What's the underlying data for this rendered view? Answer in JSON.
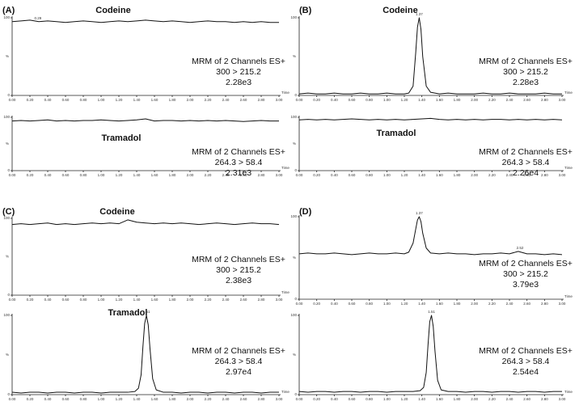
{
  "chart_data": [
    {
      "type": "line",
      "panel": "(A)",
      "title": "Codeine",
      "annotation": [
        "MRM of 2 Channels ES+",
        "300 > 215.2",
        "2.28e3"
      ],
      "xlabel": "Time",
      "ylabel": "%",
      "color": "#111111",
      "peak_labels": [
        0.29
      ],
      "x": [
        0,
        0.1,
        0.2,
        0.3,
        0.4,
        0.5,
        0.6,
        0.7,
        0.8,
        0.9,
        1,
        1.1,
        1.2,
        1.3,
        1.4,
        1.5,
        1.6,
        1.7,
        1.8,
        1.9,
        2,
        2.1,
        2.2,
        2.3,
        2.4,
        2.5,
        2.6,
        2.7,
        2.8,
        2.9,
        3
      ],
      "values": [
        95,
        96,
        97,
        95,
        96,
        95,
        94,
        95,
        96,
        95,
        94,
        95,
        96,
        95,
        96,
        97,
        96,
        95,
        96,
        95,
        94,
        95,
        96,
        95,
        95,
        94,
        95,
        94,
        95,
        94,
        94
      ],
      "xlim": [
        0,
        3
      ],
      "ylim": [
        0,
        100
      ],
      "yticks": [
        0,
        100
      ],
      "xticks": [
        {
          "value": 0,
          "label": "0.00"
        },
        {
          "value": 0.2,
          "label": "0.20"
        },
        {
          "value": 0.4,
          "label": "0.40"
        },
        {
          "value": 0.6,
          "label": "0.60"
        },
        {
          "value": 0.8,
          "label": "0.80"
        },
        {
          "value": 1,
          "label": "1.00"
        },
        {
          "value": 1.2,
          "label": "1.20"
        },
        {
          "value": 1.4,
          "label": "1.40"
        },
        {
          "value": 1.6,
          "label": "1.60"
        },
        {
          "value": 1.8,
          "label": "1.80"
        },
        {
          "value": 2,
          "label": "2.00"
        },
        {
          "value": 2.2,
          "label": "2.20"
        },
        {
          "value": 2.4,
          "label": "2.40"
        },
        {
          "value": 2.6,
          "label": "2.60"
        },
        {
          "value": 2.8,
          "label": "2.80"
        },
        {
          "value": 3,
          "label": "3.00"
        }
      ]
    },
    {
      "type": "line",
      "title": "Tramadol",
      "annotation": [
        "MRM of 2 Channels ES+",
        "264.3 > 58.4",
        "2.31e3"
      ],
      "xlabel": "Time",
      "ylabel": "%",
      "color": "#111111",
      "x": [
        0,
        0.1,
        0.2,
        0.3,
        0.4,
        0.5,
        0.6,
        0.7,
        0.8,
        0.9,
        1,
        1.1,
        1.2,
        1.3,
        1.4,
        1.5,
        1.6,
        1.7,
        1.8,
        1.9,
        2,
        2.1,
        2.2,
        2.3,
        2.4,
        2.5,
        2.6,
        2.7,
        2.8,
        2.9,
        3
      ],
      "values": [
        93,
        94,
        93,
        94,
        95,
        93,
        94,
        93,
        94,
        94,
        95,
        94,
        93,
        94,
        95,
        97,
        93,
        94,
        94,
        93,
        94,
        93,
        94,
        93,
        94,
        93,
        92,
        93,
        94,
        93,
        93
      ],
      "xlim": [
        0,
        3
      ],
      "ylim": [
        0,
        100
      ],
      "yticks": [
        0,
        100
      ],
      "xticks": [
        {
          "value": 0,
          "label": "0.00"
        },
        {
          "value": 0.2,
          "label": "0.20"
        },
        {
          "value": 0.4,
          "label": "0.40"
        },
        {
          "value": 0.6,
          "label": "0.60"
        },
        {
          "value": 0.8,
          "label": "0.80"
        },
        {
          "value": 1,
          "label": "1.00"
        },
        {
          "value": 1.2,
          "label": "1.20"
        },
        {
          "value": 1.4,
          "label": "1.40"
        },
        {
          "value": 1.6,
          "label": "1.60"
        },
        {
          "value": 1.8,
          "label": "1.80"
        },
        {
          "value": 2,
          "label": "2.00"
        },
        {
          "value": 2.2,
          "label": "2.20"
        },
        {
          "value": 2.4,
          "label": "2.40"
        },
        {
          "value": 2.6,
          "label": "2.60"
        },
        {
          "value": 2.8,
          "label": "2.80"
        },
        {
          "value": 3,
          "label": "3.00"
        }
      ]
    },
    {
      "type": "line",
      "panel": "(B)",
      "title": "Codeine",
      "annotation": [
        "MRM of 2 Channels ES+",
        "300 > 215.2",
        "2.28e3"
      ],
      "xlabel": "Time",
      "ylabel": "%",
      "color": "#111111",
      "peak_labels": [
        1.37
      ],
      "x": [
        0,
        0.1,
        0.2,
        0.3,
        0.4,
        0.5,
        0.6,
        0.7,
        0.8,
        0.9,
        1,
        1.1,
        1.2,
        1.25,
        1.3,
        1.33,
        1.35,
        1.37,
        1.39,
        1.41,
        1.45,
        1.5,
        1.6,
        1.7,
        1.8,
        1.9,
        2,
        2.1,
        2.2,
        2.3,
        2.4,
        2.5,
        2.6,
        2.7,
        2.8,
        2.9,
        3
      ],
      "values": [
        2,
        3,
        2,
        2,
        3,
        2,
        2,
        3,
        2,
        2,
        3,
        2,
        2,
        3,
        12,
        55,
        88,
        100,
        85,
        50,
        12,
        4,
        2,
        3,
        2,
        2,
        2,
        3,
        2,
        2,
        3,
        2,
        2,
        2,
        3,
        2,
        2
      ],
      "xlim": [
        0,
        3
      ],
      "ylim": [
        0,
        100
      ],
      "yticks": [
        0,
        100
      ],
      "xticks": [
        {
          "value": 0,
          "label": "0.00"
        },
        {
          "value": 0.2,
          "label": "0.20"
        },
        {
          "value": 0.4,
          "label": "0.40"
        },
        {
          "value": 0.6,
          "label": "0.60"
        },
        {
          "value": 0.8,
          "label": "0.80"
        },
        {
          "value": 1,
          "label": "1.00"
        },
        {
          "value": 1.2,
          "label": "1.20"
        },
        {
          "value": 1.4,
          "label": "1.40"
        },
        {
          "value": 1.6,
          "label": "1.60"
        },
        {
          "value": 1.8,
          "label": "1.80"
        },
        {
          "value": 2,
          "label": "2.00"
        },
        {
          "value": 2.2,
          "label": "2.20"
        },
        {
          "value": 2.4,
          "label": "2.40"
        },
        {
          "value": 2.6,
          "label": "2.60"
        },
        {
          "value": 2.8,
          "label": "2.80"
        },
        {
          "value": 3,
          "label": "3.00"
        }
      ]
    },
    {
      "type": "line",
      "title": "Tramadol",
      "annotation": [
        "MRM of 2 Channels ES+",
        "264.3 > 58.4",
        "2.26e4"
      ],
      "xlabel": "Time",
      "ylabel": "%",
      "color": "#111111",
      "x": [
        0,
        0.1,
        0.2,
        0.3,
        0.4,
        0.5,
        0.6,
        0.7,
        0.8,
        0.9,
        1,
        1.1,
        1.2,
        1.3,
        1.4,
        1.5,
        1.6,
        1.7,
        1.8,
        1.9,
        2,
        2.1,
        2.2,
        2.3,
        2.4,
        2.5,
        2.6,
        2.7,
        2.8,
        2.9,
        3
      ],
      "values": [
        95,
        96,
        95,
        96,
        95,
        96,
        97,
        96,
        95,
        96,
        95,
        96,
        95,
        96,
        97,
        98,
        96,
        95,
        96,
        95,
        96,
        95,
        96,
        96,
        95,
        96,
        95,
        96,
        95,
        96,
        95
      ],
      "xlim": [
        0,
        3
      ],
      "ylim": [
        0,
        100
      ],
      "yticks": [
        0,
        100
      ],
      "xticks": [
        {
          "value": 0,
          "label": "0.00"
        },
        {
          "value": 0.2,
          "label": "0.20"
        },
        {
          "value": 0.4,
          "label": "0.40"
        },
        {
          "value": 0.6,
          "label": "0.60"
        },
        {
          "value": 0.8,
          "label": "0.80"
        },
        {
          "value": 1,
          "label": "1.00"
        },
        {
          "value": 1.2,
          "label": "1.20"
        },
        {
          "value": 1.4,
          "label": "1.40"
        },
        {
          "value": 1.6,
          "label": "1.60"
        },
        {
          "value": 1.8,
          "label": "1.80"
        },
        {
          "value": 2,
          "label": "2.00"
        },
        {
          "value": 2.2,
          "label": "2.20"
        },
        {
          "value": 2.4,
          "label": "2.40"
        },
        {
          "value": 2.6,
          "label": "2.60"
        },
        {
          "value": 2.8,
          "label": "2.80"
        },
        {
          "value": 3,
          "label": "3.00"
        }
      ]
    },
    {
      "type": "line",
      "panel": "(C)",
      "title": "Codeine",
      "annotation": [
        "MRM of 2 Channels ES+",
        "300 > 215.2",
        "2.38e3"
      ],
      "xlabel": "Time",
      "ylabel": "%",
      "color": "#111111",
      "x": [
        0,
        0.1,
        0.2,
        0.3,
        0.4,
        0.5,
        0.6,
        0.7,
        0.8,
        0.9,
        1,
        1.1,
        1.2,
        1.3,
        1.4,
        1.5,
        1.6,
        1.7,
        1.8,
        1.9,
        2,
        2.1,
        2.2,
        2.3,
        2.4,
        2.5,
        2.6,
        2.7,
        2.8,
        2.9,
        3
      ],
      "values": [
        92,
        93,
        92,
        93,
        94,
        92,
        93,
        92,
        93,
        94,
        93,
        94,
        93,
        98,
        95,
        94,
        93,
        94,
        93,
        94,
        93,
        92,
        93,
        94,
        93,
        92,
        93,
        94,
        93,
        93,
        92
      ],
      "xlim": [
        0,
        3
      ],
      "ylim": [
        0,
        100
      ],
      "yticks": [
        0,
        100
      ],
      "xticks": [
        {
          "value": 0,
          "label": "0.00"
        },
        {
          "value": 0.2,
          "label": "0.20"
        },
        {
          "value": 0.4,
          "label": "0.40"
        },
        {
          "value": 0.6,
          "label": "0.60"
        },
        {
          "value": 0.8,
          "label": "0.80"
        },
        {
          "value": 1,
          "label": "1.00"
        },
        {
          "value": 1.2,
          "label": "1.20"
        },
        {
          "value": 1.4,
          "label": "1.40"
        },
        {
          "value": 1.6,
          "label": "1.60"
        },
        {
          "value": 1.8,
          "label": "1.80"
        },
        {
          "value": 2,
          "label": "2.00"
        },
        {
          "value": 2.2,
          "label": "2.20"
        },
        {
          "value": 2.4,
          "label": "2.40"
        },
        {
          "value": 2.6,
          "label": "2.60"
        },
        {
          "value": 2.8,
          "label": "2.80"
        },
        {
          "value": 3,
          "label": "3.00"
        }
      ]
    },
    {
      "type": "line",
      "title": "Tramadol",
      "annotation": [
        "MRM of 2 Channels ES+",
        "264.3 > 58.4",
        "2.97e4"
      ],
      "xlabel": "Time",
      "ylabel": "%",
      "color": "#111111",
      "peak_labels": [
        1.51
      ],
      "x": [
        0,
        0.1,
        0.2,
        0.3,
        0.4,
        0.5,
        0.6,
        0.7,
        0.8,
        0.9,
        1,
        1.1,
        1.2,
        1.3,
        1.38,
        1.42,
        1.45,
        1.47,
        1.49,
        1.51,
        1.53,
        1.55,
        1.58,
        1.62,
        1.7,
        1.8,
        1.9,
        2,
        2.1,
        2.2,
        2.3,
        2.4,
        2.5,
        2.6,
        2.7,
        2.8,
        2.9,
        3
      ],
      "values": [
        3,
        2,
        3,
        3,
        2,
        3,
        3,
        2,
        3,
        3,
        2,
        3,
        3,
        3,
        4,
        8,
        25,
        60,
        90,
        100,
        88,
        58,
        20,
        6,
        3,
        3,
        2,
        3,
        3,
        2,
        3,
        3,
        2,
        3,
        3,
        2,
        3,
        3
      ],
      "xlim": [
        0,
        3
      ],
      "ylim": [
        0,
        100
      ],
      "yticks": [
        0,
        100
      ],
      "xticks": [
        {
          "value": 0,
          "label": "0.00"
        },
        {
          "value": 0.2,
          "label": "0.20"
        },
        {
          "value": 0.4,
          "label": "0.40"
        },
        {
          "value": 0.6,
          "label": "0.60"
        },
        {
          "value": 0.8,
          "label": "0.80"
        },
        {
          "value": 1,
          "label": "1.00"
        },
        {
          "value": 1.2,
          "label": "1.20"
        },
        {
          "value": 1.4,
          "label": "1.40"
        },
        {
          "value": 1.6,
          "label": "1.60"
        },
        {
          "value": 1.8,
          "label": "1.80"
        },
        {
          "value": 2,
          "label": "2.00"
        },
        {
          "value": 2.2,
          "label": "2.20"
        },
        {
          "value": 2.4,
          "label": "2.40"
        },
        {
          "value": 2.6,
          "label": "2.60"
        },
        {
          "value": 2.8,
          "label": "2.80"
        },
        {
          "value": 3,
          "label": "3.00"
        }
      ]
    },
    {
      "type": "line",
      "panel": "(D)",
      "annotation": [
        "MRM of 2 Channels ES+",
        "300 > 215.2",
        "3.79e3"
      ],
      "xlabel": "Time",
      "ylabel": "%",
      "color": "#111111",
      "peak_labels": [
        1.37,
        2.52
      ],
      "x": [
        0,
        0.1,
        0.2,
        0.3,
        0.4,
        0.5,
        0.6,
        0.7,
        0.8,
        0.9,
        1,
        1.1,
        1.2,
        1.25,
        1.3,
        1.33,
        1.35,
        1.37,
        1.39,
        1.41,
        1.45,
        1.5,
        1.6,
        1.7,
        1.8,
        1.9,
        2,
        2.1,
        2.2,
        2.3,
        2.4,
        2.5,
        2.6,
        2.7,
        2.8,
        2.9,
        3
      ],
      "values": [
        55,
        56,
        55,
        55,
        56,
        55,
        54,
        55,
        56,
        55,
        55,
        56,
        55,
        57,
        68,
        85,
        96,
        100,
        94,
        80,
        62,
        56,
        55,
        56,
        55,
        55,
        54,
        55,
        55,
        56,
        55,
        58,
        55,
        55,
        54,
        55,
        54
      ],
      "xlim": [
        0,
        3
      ],
      "ylim": [
        0,
        100
      ],
      "yticks": [
        0,
        100
      ],
      "xticks": [
        {
          "value": 0,
          "label": "0.00"
        },
        {
          "value": 0.2,
          "label": "0.20"
        },
        {
          "value": 0.4,
          "label": "0.40"
        },
        {
          "value": 0.6,
          "label": "0.60"
        },
        {
          "value": 0.8,
          "label": "0.80"
        },
        {
          "value": 1,
          "label": "1.00"
        },
        {
          "value": 1.2,
          "label": "1.20"
        },
        {
          "value": 1.4,
          "label": "1.40"
        },
        {
          "value": 1.6,
          "label": "1.60"
        },
        {
          "value": 1.8,
          "label": "1.80"
        },
        {
          "value": 2,
          "label": "2.00"
        },
        {
          "value": 2.2,
          "label": "2.20"
        },
        {
          "value": 2.4,
          "label": "2.40"
        },
        {
          "value": 2.6,
          "label": "2.60"
        },
        {
          "value": 2.8,
          "label": "2.80"
        },
        {
          "value": 3,
          "label": "3.00"
        }
      ]
    },
    {
      "type": "line",
      "annotation": [
        "MRM of 2 Channels ES+",
        "264.3 > 58.4",
        "2.54e4"
      ],
      "xlabel": "Time",
      "ylabel": "%",
      "color": "#111111",
      "peak_labels": [
        1.51
      ],
      "x": [
        0,
        0.1,
        0.2,
        0.3,
        0.4,
        0.5,
        0.6,
        0.7,
        0.8,
        0.9,
        1,
        1.1,
        1.2,
        1.3,
        1.38,
        1.42,
        1.45,
        1.47,
        1.49,
        1.51,
        1.53,
        1.55,
        1.58,
        1.62,
        1.7,
        1.8,
        1.9,
        2,
        2.1,
        2.2,
        2.3,
        2.4,
        2.5,
        2.6,
        2.7,
        2.8,
        2.9,
        3
      ],
      "values": [
        4,
        3,
        4,
        4,
        3,
        4,
        4,
        3,
        4,
        4,
        3,
        4,
        4,
        4,
        5,
        9,
        28,
        62,
        92,
        100,
        86,
        55,
        18,
        6,
        4,
        4,
        3,
        4,
        4,
        3,
        4,
        4,
        3,
        4,
        4,
        3,
        4,
        4
      ],
      "xlim": [
        0,
        3
      ],
      "ylim": [
        0,
        100
      ],
      "yticks": [
        0,
        100
      ],
      "xticks": [
        {
          "value": 0,
          "label": "0.00"
        },
        {
          "value": 0.2,
          "label": "0.20"
        },
        {
          "value": 0.4,
          "label": "0.40"
        },
        {
          "value": 0.6,
          "label": "0.60"
        },
        {
          "value": 0.8,
          "label": "0.80"
        },
        {
          "value": 1,
          "label": "1.00"
        },
        {
          "value": 1.2,
          "label": "1.20"
        },
        {
          "value": 1.4,
          "label": "1.40"
        },
        {
          "value": 1.6,
          "label": "1.60"
        },
        {
          "value": 1.8,
          "label": "1.80"
        },
        {
          "value": 2,
          "label": "2.00"
        },
        {
          "value": 2.2,
          "label": "2.20"
        },
        {
          "value": 2.4,
          "label": "2.40"
        },
        {
          "value": 2.6,
          "label": "2.60"
        },
        {
          "value": 2.8,
          "label": "2.80"
        },
        {
          "value": 3,
          "label": "3.00"
        }
      ]
    }
  ]
}
